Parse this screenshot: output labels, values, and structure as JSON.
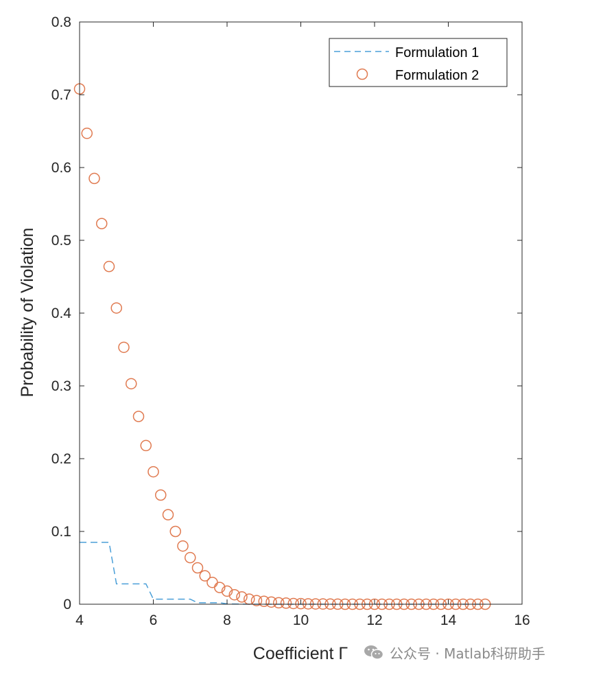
{
  "chart_data": {
    "type": "line",
    "xlabel": "Coefficient Γ",
    "ylabel": "Probability of Violation",
    "xlim": [
      4,
      16
    ],
    "ylim": [
      0,
      0.8
    ],
    "xticks": [
      4,
      6,
      8,
      10,
      12,
      14,
      16
    ],
    "yticks": [
      0,
      0.1,
      0.2,
      0.3,
      0.4,
      0.5,
      0.6,
      0.7,
      0.8
    ],
    "grid": false,
    "legend": "top-right",
    "series": [
      {
        "name": "Formulation 1",
        "style": "dashed-line",
        "color": "#4a9fd8",
        "x": [
          4,
          4.8,
          5.0,
          5.8,
          6.0,
          7.0,
          7.2,
          7.8,
          8.0,
          8.6,
          15
        ],
        "y": [
          0.085,
          0.085,
          0.028,
          0.028,
          0.007,
          0.007,
          0.002,
          0.002,
          0.0005,
          0.0,
          0.0
        ]
      },
      {
        "name": "Formulation 2",
        "style": "circle-marker",
        "color": "#e07a50",
        "x": [
          4.0,
          4.2,
          4.4,
          4.6,
          4.8,
          5.0,
          5.2,
          5.4,
          5.6,
          5.8,
          6.0,
          6.2,
          6.4,
          6.6,
          6.8,
          7.0,
          7.2,
          7.4,
          7.6,
          7.8,
          8.0,
          8.2,
          8.4,
          8.6,
          8.8,
          9.0,
          9.2,
          9.4,
          9.6,
          9.8,
          10.0,
          10.2,
          10.4,
          10.6,
          10.8,
          11.0,
          11.2,
          11.4,
          11.6,
          11.8,
          12.0,
          12.2,
          12.4,
          12.6,
          12.8,
          13.0,
          13.2,
          13.4,
          13.6,
          13.8,
          14.0,
          14.2,
          14.4,
          14.6,
          14.8,
          15.0
        ],
        "y": [
          0.708,
          0.647,
          0.585,
          0.523,
          0.464,
          0.407,
          0.353,
          0.303,
          0.258,
          0.218,
          0.182,
          0.15,
          0.123,
          0.1,
          0.08,
          0.064,
          0.05,
          0.039,
          0.03,
          0.023,
          0.018,
          0.013,
          0.01,
          0.007,
          0.005,
          0.004,
          0.003,
          0.002,
          0.0015,
          0.001,
          0.0008,
          0.0005,
          0.0004,
          0.0003,
          0.0002,
          0.0001,
          0,
          0,
          0,
          0,
          0,
          0,
          0,
          0,
          0,
          0,
          0,
          0,
          0,
          0,
          0,
          0,
          0,
          0,
          0,
          0
        ]
      }
    ]
  },
  "watermark": {
    "icon": "wechat-icon",
    "text": "公众号 · Matlab科研助手"
  }
}
